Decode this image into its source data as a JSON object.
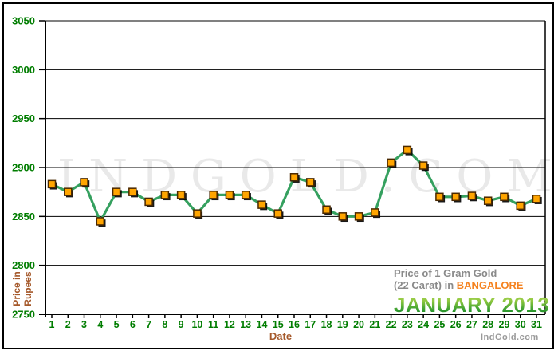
{
  "watermark": "INDGOLD.COM",
  "brand": "IndGold.com",
  "title": {
    "line1": "Price of 1 Gram Gold",
    "line2_prefix": "(22 Carat) in ",
    "city": "BANGALORE",
    "period": "JANUARY 2013"
  },
  "colors": {
    "axis_label_green": "#007d00",
    "axis_title_brown": "#a5592b",
    "line_green": "#35a05f",
    "marker_fill": "#ffa500",
    "marker_border": "#4a2800",
    "marker_shadow": "#000000",
    "grid_black": "#000000",
    "title_gray": "#8a8a8a",
    "city_orange": "#f5821f",
    "watermark_gray": "#e9e9e9",
    "brand_gray": "#9a9a9a"
  },
  "chart_data": {
    "type": "line",
    "title": "Price of 1 Gram Gold (22 Carat) in BANGALORE - JANUARY 2013",
    "xlabel": "Date",
    "ylabel": "Price in\nRupees",
    "x": [
      1,
      2,
      3,
      4,
      5,
      6,
      7,
      8,
      9,
      10,
      11,
      12,
      13,
      14,
      15,
      16,
      17,
      18,
      19,
      20,
      21,
      22,
      23,
      24,
      25,
      26,
      27,
      28,
      29,
      30,
      31
    ],
    "values": [
      2883,
      2875,
      2885,
      2845,
      2875,
      2875,
      2865,
      2872,
      2872,
      2853,
      2872,
      2872,
      2872,
      2862,
      2853,
      2890,
      2885,
      2857,
      2850,
      2850,
      2854,
      2905,
      2918,
      2902,
      2870,
      2870,
      2871,
      2866,
      2870,
      2861,
      2868
    ],
    "ylim": [
      2750,
      3050
    ],
    "yticks": [
      3050,
      3000,
      2950,
      2900,
      2850,
      2800,
      2750
    ],
    "grid": true,
    "legend": "none",
    "marker": "square"
  }
}
